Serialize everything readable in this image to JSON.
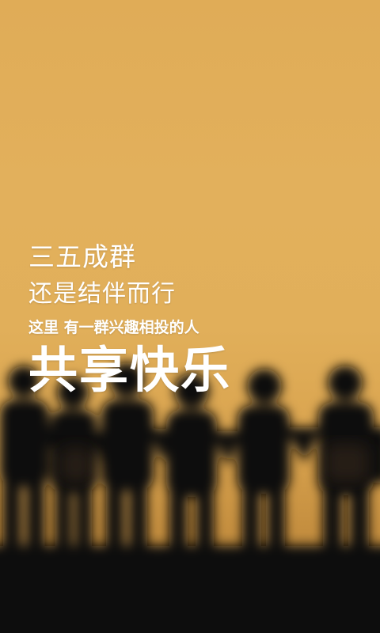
{
  "splash": {
    "line1": "三五成群",
    "line2": "还是结伴而行",
    "line3": "这里 有一群兴趣相投的人",
    "line4": "共享快乐"
  },
  "colors": {
    "sky_top": "#e0ac57",
    "sky_bottom": "#c48e3f",
    "silhouette": "#0f0b07",
    "text": "#ffffff"
  }
}
